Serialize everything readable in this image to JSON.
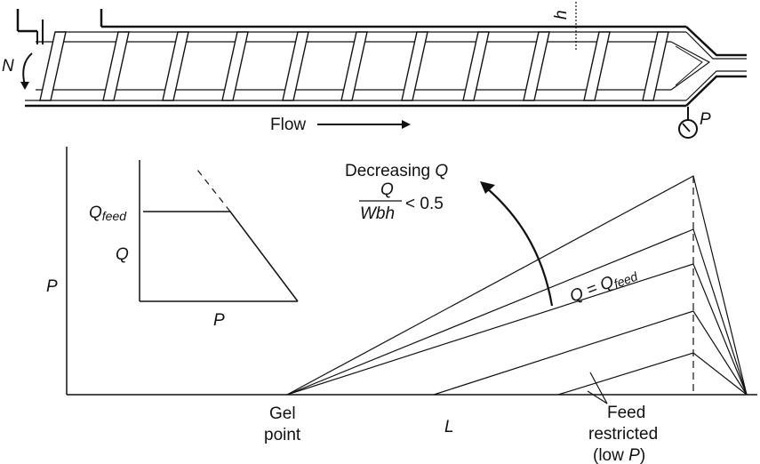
{
  "extruder": {
    "rotation_label": "N",
    "depth_label": "h",
    "flow_label": "Flow",
    "pressure_label": "P"
  },
  "inset": {
    "y_label": "Q",
    "feed_label_main": "Q",
    "feed_label_sub": "feed",
    "x_label": "P"
  },
  "main_plot": {
    "y_axis_label": "P",
    "x_axis_label": "L",
    "gel_point_line1": "Gel",
    "gel_point_line2": "point",
    "feed_restricted_line1": "Feed",
    "feed_restricted_line2": "restricted",
    "feed_restricted_line3_pre": "(low ",
    "feed_restricted_line3_var": "P",
    "feed_restricted_line3_post": ")",
    "decreasing_text": "Decreasing ",
    "decreasing_var": "Q",
    "ratio_numerator": "Q",
    "ratio_denominator": "Wbh",
    "ratio_condition": "< 0.5",
    "q_equals_main": "Q = Q",
    "q_equals_sub": "feed"
  },
  "colors": {
    "ink": "#111111",
    "background": "#ffffff"
  }
}
